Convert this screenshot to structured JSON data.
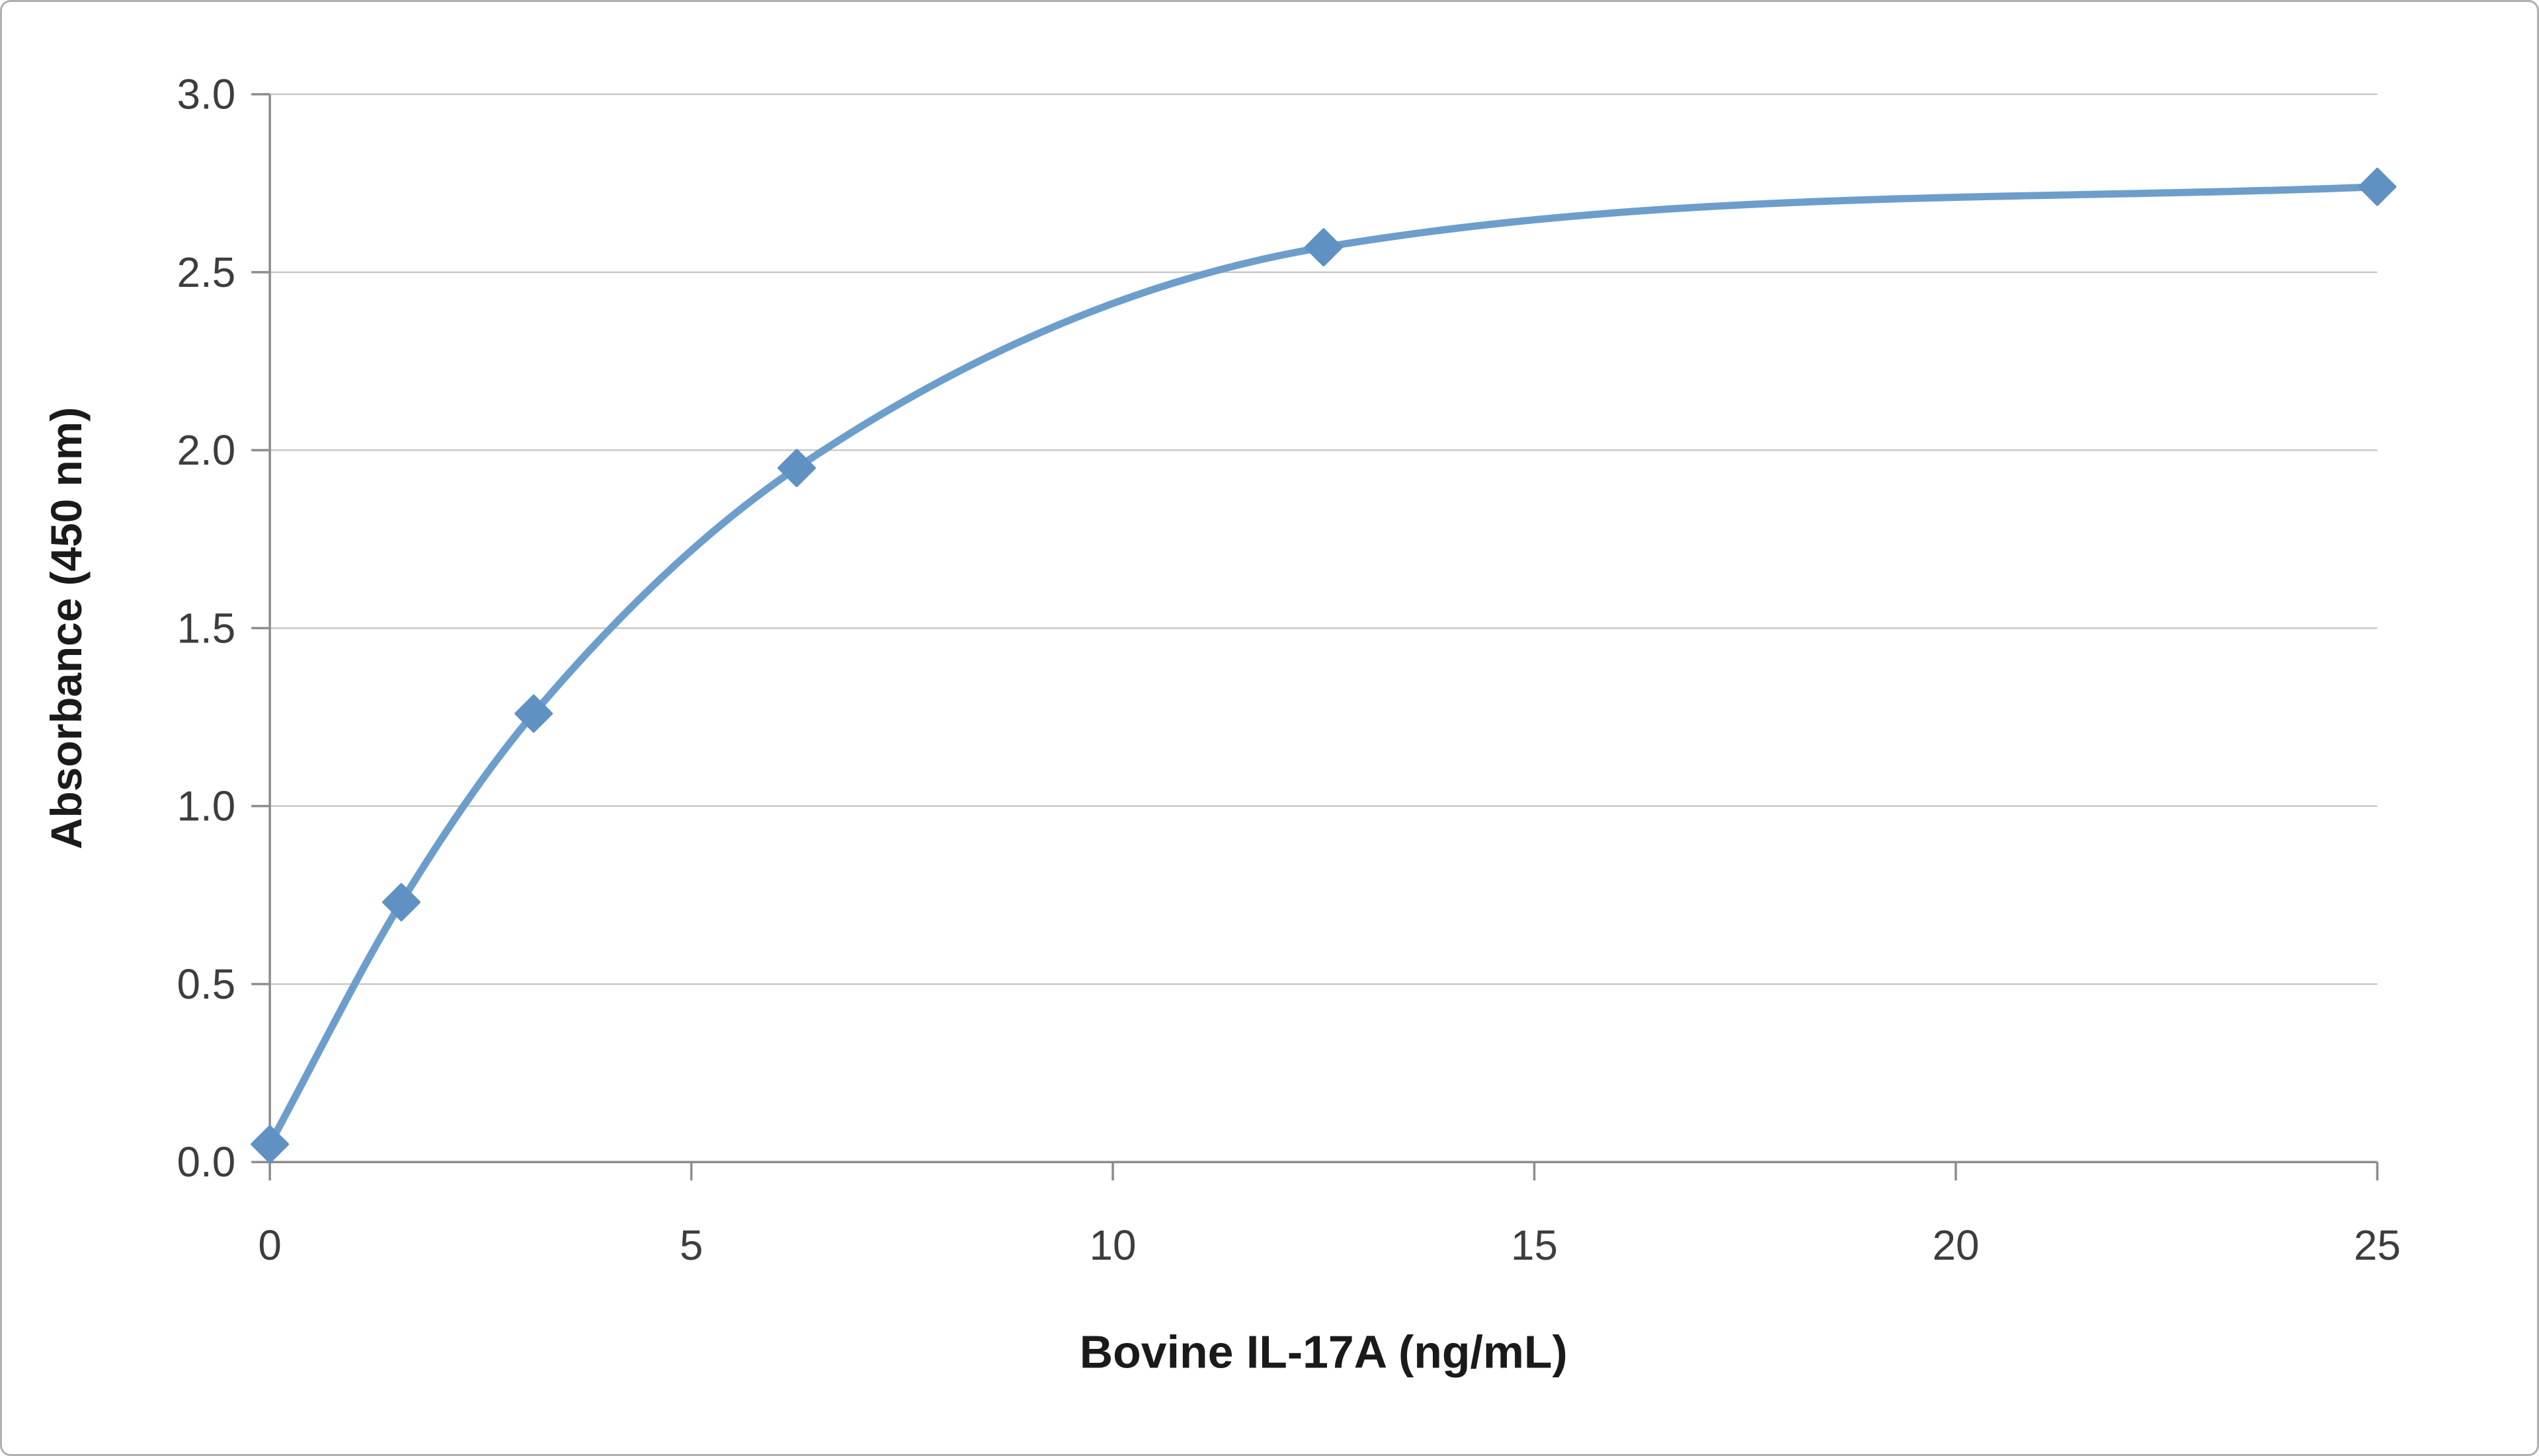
{
  "figure": {
    "background": "#ffffff",
    "border_color": "#b0b0b0"
  },
  "chart_data": {
    "type": "line",
    "title": "",
    "xlabel": "Bovine IL-17A (ng/mL)",
    "ylabel": "Absorbance (450 nm)",
    "x": [
      0,
      1.56,
      3.13,
      6.25,
      12.5,
      25
    ],
    "y": [
      0.05,
      0.73,
      1.26,
      1.95,
      2.57,
      2.74
    ],
    "xlim": [
      0,
      25
    ],
    "ylim": [
      0,
      3
    ],
    "xticks": [
      0,
      5,
      10,
      15,
      20,
      25
    ],
    "xtick_labels": [
      "0",
      "5",
      "10",
      "15",
      "20",
      "25"
    ],
    "yticks": [
      0,
      0.5,
      1,
      1.5,
      2,
      2.5,
      3
    ],
    "ytick_labels": [
      "0.0",
      "0.5",
      "1.0",
      "1.5",
      "2.0",
      "2.5",
      "3.0"
    ],
    "grid": "horizontal",
    "legend": "none",
    "marker": "diamond",
    "style": {
      "line_color": "#6d9ecb",
      "marker_color": "#5f92c2",
      "grid_color": "#c8c8c8",
      "axis_color": "#8c8c8c",
      "line_width": 11,
      "marker_half_size": 27
    }
  }
}
